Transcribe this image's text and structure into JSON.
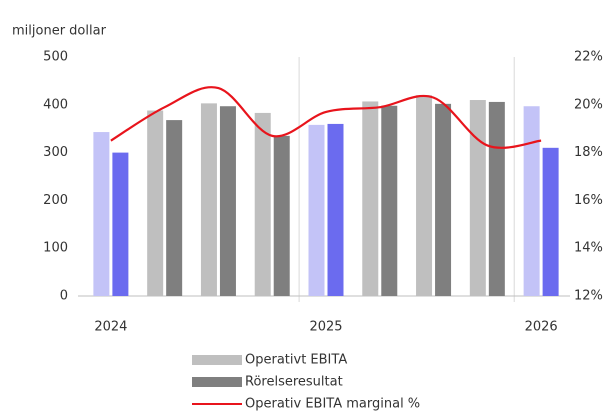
{
  "chart_data": {
    "type": "bar",
    "y_label": "miljoner dollar",
    "categories": [
      "2024",
      null,
      null,
      null,
      "2025",
      null,
      null,
      null,
      "2026"
    ],
    "series": [
      {
        "name": "Operativt EBITA",
        "color": "#bfbfbf",
        "colors": [
          "#c3c3f7",
          "#bfbfbf",
          "#bfbfbf",
          "#bfbfbf",
          "#c3c3f7",
          "#bfbfbf",
          "#bfbfbf",
          "#bfbfbf",
          "#c3c3f7"
        ],
        "values": [
          343,
          388,
          403,
          383,
          358,
          407,
          420,
          410,
          397
        ]
      },
      {
        "name": "Rörelseresultat",
        "color": "#7f7f7f",
        "colors": [
          "#6b6bef",
          "#7f7f7f",
          "#7f7f7f",
          "#7f7f7f",
          "#6b6bef",
          "#7f7f7f",
          "#7f7f7f",
          "#7f7f7f",
          "#6b6bef"
        ],
        "values": [
          300,
          368,
          397,
          335,
          360,
          398,
          402,
          406,
          310
        ]
      },
      {
        "name": "Operativ EBITA marginal %",
        "color": "#e8141c",
        "type": "line",
        "axis": "y2",
        "values": [
          18.5,
          19.9,
          20.7,
          18.7,
          19.7,
          19.9,
          20.3,
          18.3,
          18.5
        ]
      }
    ],
    "ylim": [
      0,
      500
    ],
    "yticks": [
      0,
      100,
      200,
      300,
      400,
      500
    ],
    "y2lim": [
      12,
      22
    ],
    "y2ticks": [
      {
        "value": 12,
        "label": "12%"
      },
      {
        "value": 14,
        "label": "14%"
      },
      {
        "value": 16,
        "label": "16%"
      },
      {
        "value": 18,
        "label": "18%"
      },
      {
        "value": 20,
        "label": "20%"
      },
      {
        "value": 22,
        "label": "22%"
      }
    ],
    "grid": false
  }
}
